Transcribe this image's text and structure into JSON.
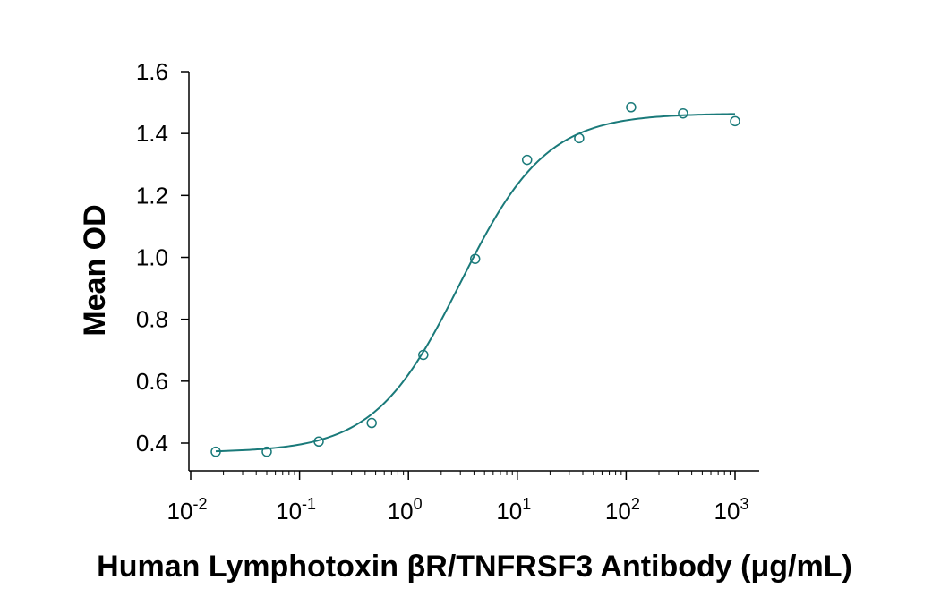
{
  "chart_data": {
    "type": "scatter",
    "title": "",
    "xlabel": "Human Lymphotoxin βR/TNFRSF3 Antibody (μg/mL)",
    "ylabel": "Mean OD",
    "x_scale": "log",
    "xlim": [
      0.01,
      1000
    ],
    "ylim": [
      0.35,
      1.6
    ],
    "x_ticks": [
      {
        "value": 0.01,
        "base": "10",
        "exp": "-2"
      },
      {
        "value": 0.1,
        "base": "10",
        "exp": "-1"
      },
      {
        "value": 1,
        "base": "10",
        "exp": "0"
      },
      {
        "value": 10,
        "base": "10",
        "exp": "1"
      },
      {
        "value": 100,
        "base": "10",
        "exp": "2"
      },
      {
        "value": 1000,
        "base": "10",
        "exp": "3"
      }
    ],
    "y_ticks": [
      "0.4",
      "0.6",
      "0.8",
      "1.0",
      "1.2",
      "1.4",
      "1.6"
    ],
    "grid": false,
    "legend": "none",
    "series": [
      {
        "marker": "open-circle",
        "color": "#1a7a7a",
        "x": [
          0.017,
          0.05,
          0.15,
          0.46,
          1.37,
          4.1,
          12.3,
          37,
          111,
          333,
          1000
        ],
        "y": [
          0.372,
          0.372,
          0.405,
          0.465,
          0.685,
          0.995,
          1.315,
          1.385,
          1.485,
          1.465,
          1.44
        ]
      }
    ],
    "fit_curve": {
      "model": "4PL",
      "color": "#1a7a7a",
      "bottom": 0.37,
      "top": 1.465,
      "ec50": 3.0,
      "hill": 1.1
    }
  }
}
